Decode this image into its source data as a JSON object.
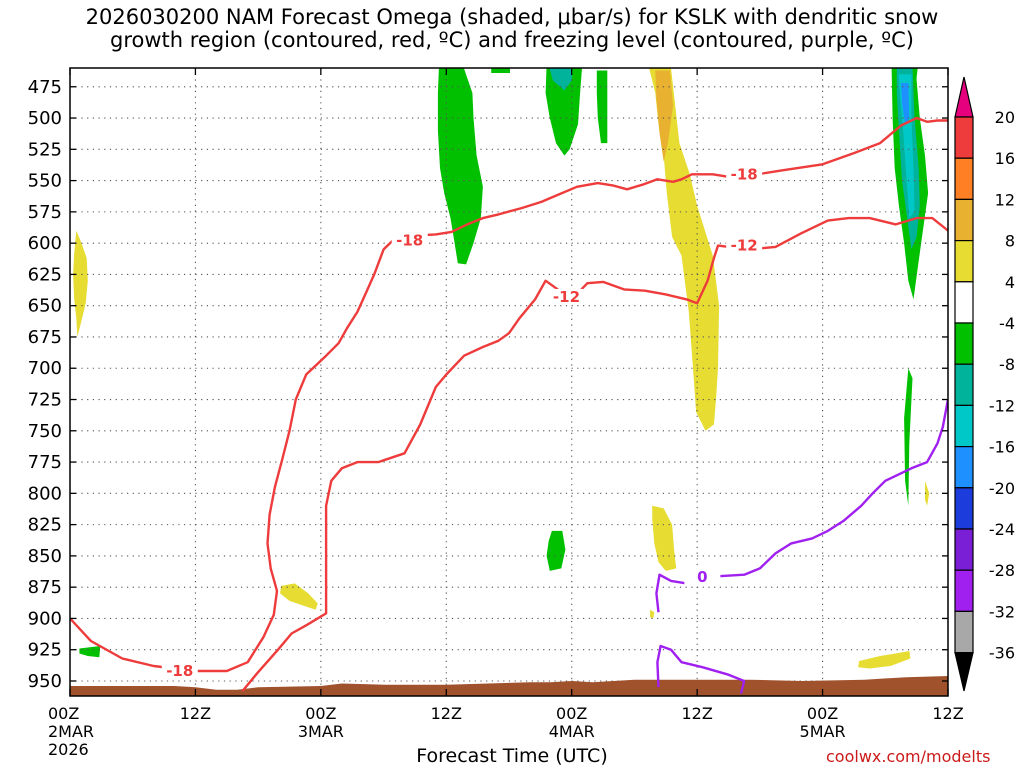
{
  "title": {
    "line1": "2026030200 NAM Forecast Omega (shaded, μbar/s) for KSLK with dendritic snow",
    "line2": "growth region (contoured, red, ºC) and freezing level (contoured, purple, ºC)"
  },
  "source": "coolwx.com/modelts",
  "chart_data": {
    "type": "time-height contour",
    "xlabel": "Forecast Time (UTC)",
    "ylabel": "",
    "xlim": [
      0,
      84
    ],
    "ylim": [
      962,
      460
    ],
    "y_ticks": [
      475,
      500,
      525,
      550,
      575,
      600,
      625,
      650,
      675,
      700,
      725,
      750,
      775,
      800,
      825,
      850,
      875,
      900,
      925,
      950
    ],
    "x_ticks": [
      {
        "hour": 0,
        "lines": [
          "00Z",
          "2MAR",
          "2026"
        ]
      },
      {
        "hour": 12,
        "lines": [
          "12Z"
        ]
      },
      {
        "hour": 24,
        "lines": [
          "00Z",
          "3MAR"
        ]
      },
      {
        "hour": 36,
        "lines": [
          "12Z"
        ]
      },
      {
        "hour": 48,
        "lines": [
          "00Z",
          "4MAR"
        ]
      },
      {
        "hour": 60,
        "lines": [
          "12Z"
        ]
      },
      {
        "hour": 72,
        "lines": [
          "00Z",
          "5MAR"
        ]
      },
      {
        "hour": 84,
        "lines": [
          "12Z"
        ]
      }
    ],
    "grid": true,
    "colorbar": {
      "levels": [
        "20",
        "16",
        "12",
        "8",
        "4",
        "-4",
        "-8",
        "-12",
        "-16",
        "-20",
        "-24",
        "-28",
        "-32",
        "-36"
      ],
      "colors": [
        "#e6007e",
        "#ee3b3b",
        "#ff7f24",
        "#e8b230",
        "#e6dc32",
        "#ffffff",
        "#00c000",
        "#00b39a",
        "#00c8c8",
        "#1e90ff",
        "#1c3cdc",
        "#7a1fd6",
        "#a020f0",
        "#a8a8a8",
        "#000000"
      ]
    },
    "contours": [
      {
        "label": "-18",
        "color": "#ee3b3b",
        "label_points": [
          [
            10.5,
            942
          ],
          [
            32.5,
            598
          ],
          [
            64.5,
            545
          ]
        ],
        "points": [
          [
            0,
            900
          ],
          [
            2,
            918
          ],
          [
            5,
            932
          ],
          [
            8,
            938
          ],
          [
            12,
            942
          ],
          [
            15,
            942
          ],
          [
            17,
            935
          ],
          [
            18.5,
            915
          ],
          [
            19.5,
            897
          ],
          [
            19.8,
            878
          ],
          [
            19.2,
            860
          ],
          [
            18.9,
            840
          ],
          [
            19.1,
            817
          ],
          [
            19.6,
            795
          ],
          [
            20.3,
            773
          ],
          [
            21,
            750
          ],
          [
            21.6,
            725
          ],
          [
            22.6,
            705
          ],
          [
            24.5,
            690
          ],
          [
            25.7,
            680
          ],
          [
            26.5,
            668
          ],
          [
            27.5,
            655
          ],
          [
            28.3,
            640
          ],
          [
            29.1,
            625
          ],
          [
            30,
            605
          ],
          [
            31,
            597
          ],
          [
            33,
            594
          ],
          [
            35,
            593
          ],
          [
            36.5,
            591
          ],
          [
            38,
            585
          ],
          [
            39.5,
            580
          ],
          [
            41,
            577
          ],
          [
            43.2,
            572
          ],
          [
            45.1,
            567
          ],
          [
            46.5,
            562
          ],
          [
            48.5,
            555
          ],
          [
            50.5,
            552
          ],
          [
            52,
            554
          ],
          [
            53.3,
            557
          ],
          [
            54.9,
            553
          ],
          [
            56.2,
            549
          ],
          [
            57.7,
            551
          ],
          [
            58.5,
            549
          ],
          [
            59.5,
            545
          ],
          [
            61.5,
            545
          ],
          [
            63,
            547
          ],
          [
            65,
            546
          ],
          [
            68,
            542
          ],
          [
            72,
            537
          ],
          [
            75,
            528
          ],
          [
            77.5,
            520
          ],
          [
            79.5,
            506
          ],
          [
            81,
            500
          ],
          [
            82,
            503
          ],
          [
            83,
            502
          ],
          [
            84,
            502
          ]
        ]
      },
      {
        "label": "-12",
        "color": "#ee3b3b",
        "label_points": [
          [
            47.5,
            643
          ],
          [
            64.5,
            602
          ]
        ],
        "points": [
          [
            16.5,
            958
          ],
          [
            18,
            943
          ],
          [
            19.9,
            925
          ],
          [
            21.2,
            912
          ],
          [
            22.7,
            905
          ],
          [
            24.5,
            896
          ],
          [
            24.5,
            880
          ],
          [
            24.5,
            845
          ],
          [
            24.5,
            810
          ],
          [
            25,
            790
          ],
          [
            26,
            780
          ],
          [
            27.5,
            775
          ],
          [
            29.5,
            775
          ],
          [
            32,
            768
          ],
          [
            33.5,
            745
          ],
          [
            35,
            715
          ],
          [
            36,
            705
          ],
          [
            37.7,
            690
          ],
          [
            39.5,
            683
          ],
          [
            41,
            678
          ],
          [
            42,
            672
          ],
          [
            43,
            660
          ],
          [
            44.5,
            645
          ],
          [
            45.5,
            630
          ],
          [
            46.5,
            636
          ],
          [
            48,
            645
          ],
          [
            49.5,
            632
          ],
          [
            51,
            631
          ],
          [
            53,
            637
          ],
          [
            55,
            638
          ],
          [
            57,
            641
          ],
          [
            59,
            645
          ],
          [
            60,
            648
          ],
          [
            61,
            630
          ],
          [
            61.6,
            612
          ],
          [
            62,
            602
          ],
          [
            65,
            605
          ],
          [
            67.5,
            603
          ],
          [
            70,
            592
          ],
          [
            72.5,
            582
          ],
          [
            74.5,
            580
          ],
          [
            76.5,
            580
          ],
          [
            79,
            585
          ],
          [
            81,
            580
          ],
          [
            82.5,
            580
          ],
          [
            84,
            590
          ]
        ]
      },
      {
        "label": "0",
        "color": "#a020f0",
        "label_points": [
          [
            60.5,
            867
          ]
        ],
        "points": [
          [
            56.3,
            955
          ],
          [
            56.2,
            935
          ],
          [
            56.5,
            922
          ],
          [
            57.5,
            925
          ],
          [
            58.5,
            935
          ],
          [
            60.5,
            939
          ],
          [
            63,
            945
          ],
          [
            64.5,
            950
          ],
          [
            64.2,
            960
          ]
        ],
        "points2": [
          [
            56.3,
            895
          ],
          [
            56.1,
            880
          ],
          [
            56.4,
            865
          ],
          [
            57.5,
            870
          ],
          [
            59,
            872
          ],
          [
            60.5,
            867
          ],
          [
            62.5,
            866
          ],
          [
            64.5,
            865
          ],
          [
            66,
            860
          ],
          [
            67.5,
            848
          ],
          [
            69,
            840
          ],
          [
            71,
            836
          ],
          [
            72.5,
            830
          ],
          [
            74,
            822
          ],
          [
            75.7,
            810
          ],
          [
            76.8,
            800
          ],
          [
            78,
            790
          ],
          [
            79.5,
            784
          ],
          [
            80.5,
            780
          ],
          [
            82,
            775
          ],
          [
            83,
            760
          ],
          [
            83.5,
            747
          ],
          [
            84,
            725
          ]
        ]
      }
    ],
    "shaded_regions": [
      {
        "value_class": "4 to 8",
        "color": "#e6dc32"
      },
      {
        "value_class": "8 to 12",
        "color": "#e8b230"
      },
      {
        "value_class": "-4 to -8",
        "color": "#00c000"
      },
      {
        "value_class": "-8 to -12",
        "color": "#00b39a"
      },
      {
        "value_class": "-12 to -16",
        "color": "#00c8c8"
      },
      {
        "value_class": "-16 to -20",
        "color": "#1e90ff"
      }
    ]
  }
}
